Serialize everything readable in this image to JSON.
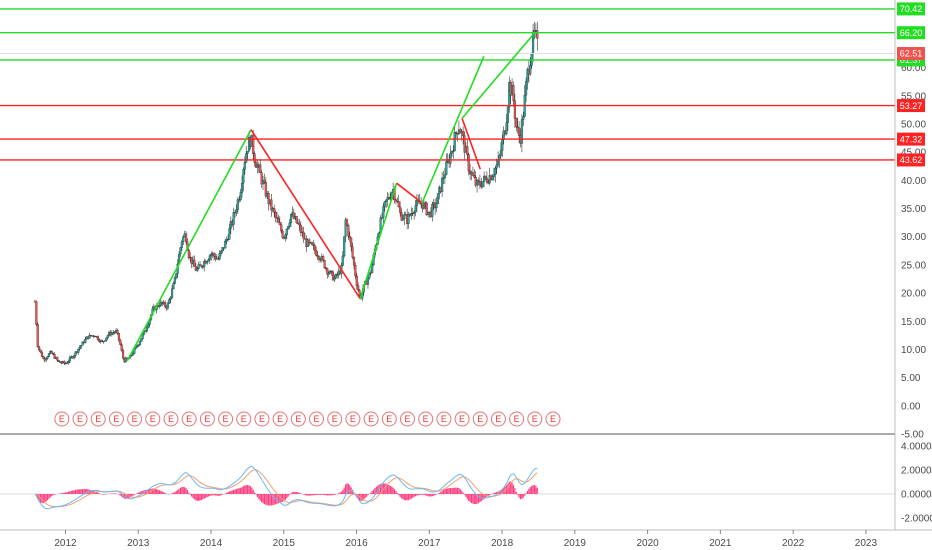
{
  "chart_data": [
    {
      "type": "candlestick",
      "x_ticks": [
        "2012",
        "2013",
        "2014",
        "2015",
        "2016",
        "2017",
        "2018",
        "2019",
        "2020",
        "2021",
        "2022",
        "2023"
      ],
      "y_ticks": [
        "-5.00",
        "0.00",
        "5.00",
        "10.00",
        "15.00",
        "20.00",
        "25.00",
        "30.00",
        "35.00",
        "40.00",
        "45.00",
        "50.00",
        "55.00",
        "60.00"
      ],
      "ylim": [
        -5,
        72
      ],
      "xlim": [
        2011.1,
        2023.4
      ],
      "grid": false,
      "price_path": [
        [
          2011.58,
          18.5
        ],
        [
          2011.62,
          10.5
        ],
        [
          2011.7,
          8.2
        ],
        [
          2011.8,
          9.5
        ],
        [
          2011.9,
          7.8
        ],
        [
          2012.0,
          7.5
        ],
        [
          2012.1,
          8.8
        ],
        [
          2012.2,
          10.5
        ],
        [
          2012.3,
          12.2
        ],
        [
          2012.4,
          12.6
        ],
        [
          2012.5,
          11.2
        ],
        [
          2012.6,
          12.8
        ],
        [
          2012.7,
          13.2
        ],
        [
          2012.75,
          11.0
        ],
        [
          2012.8,
          8.0
        ],
        [
          2012.88,
          8.5
        ],
        [
          2013.0,
          11.0
        ],
        [
          2013.1,
          13.5
        ],
        [
          2013.2,
          17.0
        ],
        [
          2013.3,
          18.2
        ],
        [
          2013.4,
          17.6
        ],
        [
          2013.5,
          22.0
        ],
        [
          2013.55,
          26.0
        ],
        [
          2013.6,
          29.5
        ],
        [
          2013.65,
          30.5
        ],
        [
          2013.7,
          26.5
        ],
        [
          2013.8,
          24.0
        ],
        [
          2013.9,
          25.5
        ],
        [
          2014.0,
          27.0
        ],
        [
          2014.1,
          26.0
        ],
        [
          2014.2,
          29.0
        ],
        [
          2014.3,
          33.0
        ],
        [
          2014.4,
          38.0
        ],
        [
          2014.45,
          43.0
        ],
        [
          2014.5,
          46.0
        ],
        [
          2014.55,
          47.5
        ],
        [
          2014.6,
          44.0
        ],
        [
          2014.7,
          40.0
        ],
        [
          2014.8,
          36.0
        ],
        [
          2014.9,
          33.0
        ],
        [
          2015.0,
          30.0
        ],
        [
          2015.1,
          34.0
        ],
        [
          2015.2,
          32.0
        ],
        [
          2015.3,
          29.0
        ],
        [
          2015.4,
          28.0
        ],
        [
          2015.5,
          26.5
        ],
        [
          2015.6,
          24.0
        ],
        [
          2015.7,
          22.5
        ],
        [
          2015.8,
          24.5
        ],
        [
          2015.85,
          33.0
        ],
        [
          2015.9,
          30.0
        ],
        [
          2015.95,
          26.0
        ],
        [
          2016.0,
          22.0
        ],
        [
          2016.05,
          19.0
        ],
        [
          2016.1,
          21.0
        ],
        [
          2016.2,
          24.0
        ],
        [
          2016.3,
          31.0
        ],
        [
          2016.4,
          36.0
        ],
        [
          2016.5,
          38.5
        ],
        [
          2016.55,
          36.5
        ],
        [
          2016.6,
          34.0
        ],
        [
          2016.7,
          33.0
        ],
        [
          2016.8,
          35.5
        ],
        [
          2016.9,
          36.0
        ],
        [
          2017.0,
          34.0
        ],
        [
          2017.1,
          36.0
        ],
        [
          2017.2,
          41.0
        ],
        [
          2017.3,
          45.0
        ],
        [
          2017.4,
          50.0
        ],
        [
          2017.45,
          48.0
        ],
        [
          2017.55,
          42.0
        ],
        [
          2017.65,
          39.0
        ],
        [
          2017.75,
          40.0
        ],
        [
          2017.85,
          41.0
        ],
        [
          2017.95,
          43.0
        ],
        [
          2018.05,
          50.0
        ],
        [
          2018.1,
          57.0
        ],
        [
          2018.15,
          55.0
        ],
        [
          2018.2,
          49.0
        ],
        [
          2018.25,
          47.5
        ],
        [
          2018.3,
          53.0
        ],
        [
          2018.35,
          59.0
        ],
        [
          2018.4,
          63.0
        ],
        [
          2018.45,
          66.0
        ],
        [
          2018.5,
          62.51
        ]
      ],
      "trend_lines": [
        {
          "color": "#22dd22",
          "from": [
            2012.85,
            8.0
          ],
          "to": [
            2014.55,
            49.0
          ]
        },
        {
          "color": "#ff2222",
          "from": [
            2014.55,
            49.0
          ],
          "to": [
            2016.05,
            19.0
          ]
        },
        {
          "color": "#22dd22",
          "from": [
            2016.05,
            19.0
          ],
          "to": [
            2016.55,
            39.5
          ]
        },
        {
          "color": "#ff2222",
          "from": [
            2016.55,
            39.5
          ],
          "to": [
            2016.9,
            36.0
          ]
        },
        {
          "color": "#22dd22",
          "from": [
            2016.9,
            36.0
          ],
          "to": [
            2017.75,
            62.0
          ]
        },
        {
          "color": "#22dd22",
          "from": [
            2017.45,
            51.0
          ],
          "to": [
            2018.45,
            66.2
          ]
        },
        {
          "color": "#ff2222",
          "from": [
            2017.45,
            51.0
          ],
          "to": [
            2017.7,
            42.0
          ]
        }
      ],
      "horizontal_levels": [
        {
          "value": 70.42,
          "label": "70.42",
          "color": "#22dd22"
        },
        {
          "value": 66.2,
          "label": "66.20",
          "color": "#22dd22"
        },
        {
          "value": 61.37,
          "label": "61.37",
          "color": "#22dd22"
        },
        {
          "value": 53.27,
          "label": "53.27",
          "color": "#ff2222"
        },
        {
          "value": 47.32,
          "label": "47.32",
          "color": "#ff2222"
        },
        {
          "value": 43.62,
          "label": "43.62",
          "color": "#ff2222"
        }
      ],
      "last_price": {
        "value": 62.51,
        "label": "62.51",
        "color": "#ef5350"
      },
      "earnings_marker": "E",
      "earnings_dates": [
        2011.95,
        2012.2,
        2012.45,
        2012.7,
        2012.95,
        2013.2,
        2013.45,
        2013.7,
        2013.95,
        2014.2,
        2014.45,
        2014.7,
        2014.95,
        2015.2,
        2015.45,
        2015.7,
        2015.95,
        2016.2,
        2016.45,
        2016.7,
        2016.95,
        2017.2,
        2017.45,
        2017.7,
        2017.95,
        2018.2,
        2018.45,
        2018.7
      ],
      "up_color": "#26a69a",
      "down_color": "#ef5350"
    },
    {
      "type": "macd",
      "y_ticks": [
        "-2.0000",
        "0.0000",
        "2.0000",
        "4.0000"
      ],
      "ylim": [
        -3.0,
        5.0
      ],
      "series": [
        {
          "key": "macd",
          "color": "#6fb7f0"
        },
        {
          "key": "signal",
          "color": "#f0a070"
        },
        {
          "key": "histogram",
          "color": "#ff3d7f"
        }
      ]
    }
  ]
}
